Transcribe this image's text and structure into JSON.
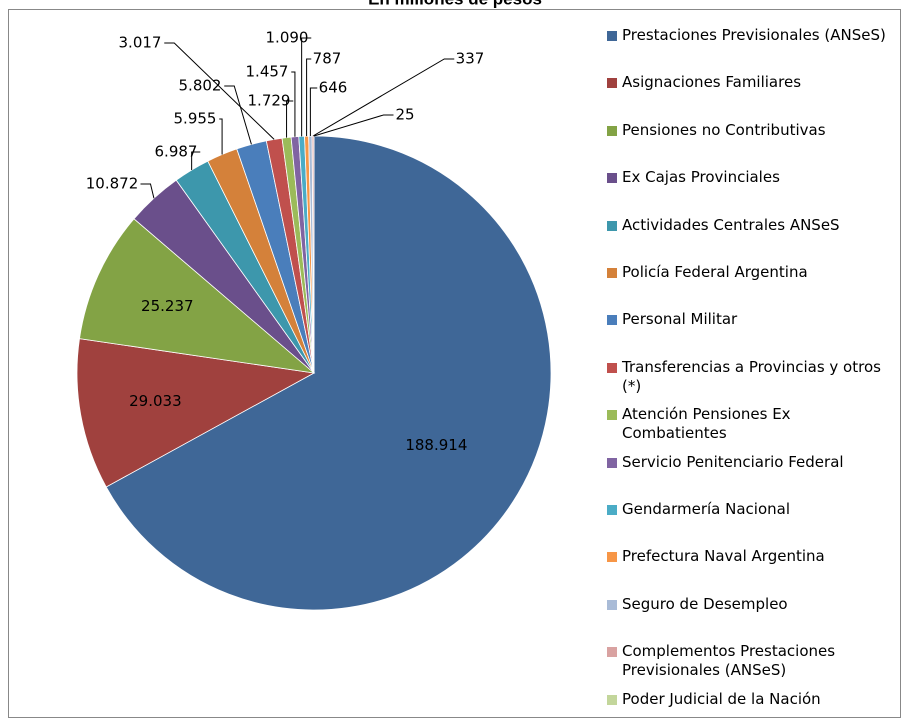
{
  "chart_data": {
    "type": "pie",
    "title": "En millones de pesos",
    "categories": [
      "Prestaciones Previsionales (ANSeS)",
      "Asignaciones Familiares",
      "Pensiones no Contributivas",
      "Ex Cajas Provinciales",
      "Actividades Centrales ANSeS",
      "Policía Federal Argentina",
      "Personal Militar",
      "Transferencias a Provincias y otros (*)",
      "Atención Pensiones Ex Combatientes",
      "Servicio Penitenciario Federal",
      "Gendarmería Nacional",
      "Prefectura Naval Argentina",
      "Seguro de Desempleo",
      "Complementos Prestaciones Previsionales (ANSeS)",
      "Poder Judicial de la Nación"
    ],
    "values": [
      188914,
      29033,
      25237,
      10872,
      6987,
      5955,
      5802,
      3017,
      1729,
      1457,
      1090,
      787,
      646,
      337,
      25
    ],
    "value_labels": [
      "188.914",
      "29.033",
      "25.237",
      "10.872",
      "6.987",
      "5.955",
      "5.802",
      "3.017",
      "1.729",
      "1.457",
      "1.090",
      "787",
      "646",
      "337",
      "25"
    ],
    "colors": [
      "#3F6797",
      "#A0413E",
      "#83A345",
      "#6A4F8B",
      "#3D97AC",
      "#D4813A",
      "#4A7EBB",
      "#C0504D",
      "#9BBB59",
      "#8064A2",
      "#4BACC6",
      "#F79646",
      "#A9BBD7",
      "#D9A2A1",
      "#C3D69B"
    ]
  }
}
